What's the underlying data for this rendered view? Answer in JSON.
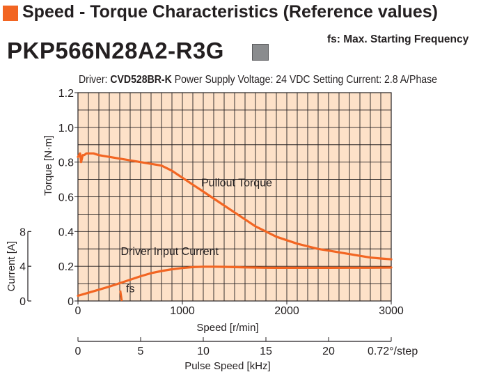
{
  "header": {
    "title": "Speed - Torque Characteristics (Reference values)",
    "fs_note": "fs: Max. Starting Frequency",
    "model": "PKP566N28A2-R3G"
  },
  "driver_info": {
    "driver_prefix": "Driver:",
    "driver_name": "CVD528BR-K",
    "supply": "Power Supply Voltage: 24 VDC",
    "current": "Setting Current: 2.8 A/Phase"
  },
  "colors": {
    "plot_bg": "#fde1c8",
    "curve": "#f26522",
    "grid": "#231f20",
    "header_square": "#f26522",
    "model_square": "#8a8c8e"
  },
  "chart_data": {
    "type": "line",
    "xlabel": "Speed [r/min]",
    "ylabel": "Torque [N·m]",
    "y2label": "Current [A]",
    "x2label": "Pulse Speed [kHz]",
    "xlim": [
      0,
      3000
    ],
    "ylim": [
      0,
      1.2
    ],
    "y2lim": [
      0,
      8
    ],
    "x2lim": [
      0,
      25
    ],
    "grid": true,
    "x_ticks": [
      "0",
      "1000",
      "2000",
      "3000"
    ],
    "y_ticks": [
      "0",
      "0.2",
      "0.4",
      "0.6",
      "0.8",
      "1.0",
      "1.2"
    ],
    "y2_ticks": [
      "0",
      "4",
      "8"
    ],
    "x2_ticks": [
      "0",
      "5",
      "10",
      "15",
      "20"
    ],
    "x2_end_label": "0.72°/step",
    "series": [
      {
        "name": "Pullout Torque",
        "axis": "torque",
        "x": [
          0,
          20,
          30,
          45,
          60,
          80,
          100,
          150,
          200,
          300,
          400,
          500,
          600,
          700,
          800,
          900,
          1000,
          1100,
          1200,
          1300,
          1400,
          1500,
          1600,
          1700,
          1800,
          1900,
          2000,
          2100,
          2200,
          2300,
          2400,
          2500,
          2600,
          2700,
          2800,
          2900,
          3000
        ],
        "y": [
          0.83,
          0.85,
          0.8,
          0.84,
          0.84,
          0.85,
          0.85,
          0.85,
          0.84,
          0.83,
          0.82,
          0.81,
          0.8,
          0.79,
          0.78,
          0.75,
          0.71,
          0.67,
          0.63,
          0.59,
          0.55,
          0.51,
          0.47,
          0.43,
          0.4,
          0.37,
          0.35,
          0.33,
          0.315,
          0.3,
          0.29,
          0.28,
          0.27,
          0.26,
          0.25,
          0.245,
          0.24
        ]
      },
      {
        "name": "Driver Input Current",
        "axis": "current",
        "x": [
          0,
          100,
          200,
          300,
          400,
          500,
          600,
          700,
          800,
          900,
          1000,
          1100,
          1200,
          1300,
          1400,
          1500,
          1600,
          1700,
          1800,
          1900,
          2000,
          2200,
          2400,
          2600,
          2800,
          3000
        ],
        "y": [
          0.6,
          0.95,
          1.3,
          1.65,
          2.05,
          2.45,
          2.85,
          3.2,
          3.45,
          3.65,
          3.8,
          3.9,
          3.95,
          3.95,
          3.93,
          3.9,
          3.87,
          3.85,
          3.83,
          3.82,
          3.82,
          3.82,
          3.82,
          3.83,
          3.83,
          3.85
        ]
      }
    ],
    "annotations": [
      {
        "text": "Pullout Torque",
        "x": 1180,
        "y": 0.66
      },
      {
        "text": "Driver Input Current",
        "x": 410,
        "y": 0.265
      },
      {
        "text": "fs",
        "x": 460,
        "y": 0.05
      }
    ],
    "fs_marker": {
      "x": [
        405,
        420
      ],
      "y": [
        0.06,
        0.0
      ]
    }
  }
}
